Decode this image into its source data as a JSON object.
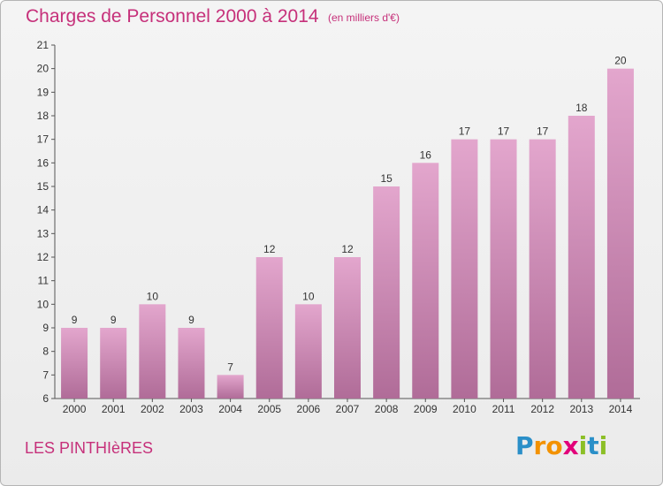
{
  "header": {
    "title": "Charges de Personnel 2000 à 2014",
    "unit": "(en milliers d'€)"
  },
  "footer": {
    "commune": "LES PINTHIèRES",
    "logo_letters": [
      {
        "ch": "P",
        "color": "#2a8fc8"
      },
      {
        "ch": "r",
        "color": "#f39200"
      },
      {
        "ch": "o",
        "color": "#f39200"
      },
      {
        "ch": "x",
        "color": "#e2007a"
      },
      {
        "ch": "i",
        "color": "#8cbf26"
      },
      {
        "ch": "t",
        "color": "#2a8fc8"
      },
      {
        "ch": "i",
        "color": "#8cbf26"
      }
    ]
  },
  "colors": {
    "bar_top": "#e3a6cd",
    "bar_bottom": "#b06c98",
    "accent": "#c6307a"
  },
  "chart_data": {
    "type": "bar",
    "title": "Charges de Personnel 2000 à 2014",
    "subtitle": "(en milliers d'€)",
    "categories": [
      "2000",
      "2001",
      "2002",
      "2003",
      "2004",
      "2005",
      "2006",
      "2007",
      "2008",
      "2009",
      "2010",
      "2011",
      "2012",
      "2013",
      "2014"
    ],
    "values": [
      9,
      9,
      10,
      9,
      7,
      12,
      10,
      12,
      15,
      16,
      17,
      17,
      17,
      18,
      20
    ],
    "ylim": [
      6,
      21
    ],
    "yticks": [
      6,
      7,
      8,
      9,
      10,
      11,
      12,
      13,
      14,
      15,
      16,
      17,
      18,
      19,
      20,
      21
    ],
    "grid": false,
    "legend": "none"
  }
}
